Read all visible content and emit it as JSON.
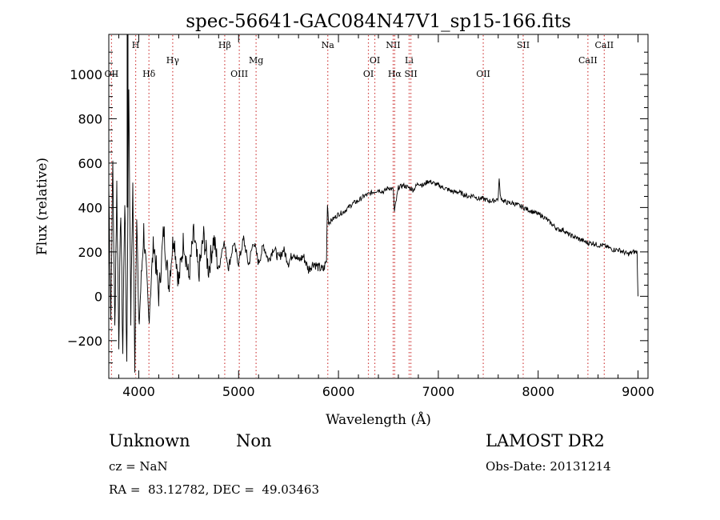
{
  "chart_data": {
    "type": "line",
    "title": "spec-56641-GAC084N47V1_sp15-166.fits",
    "xlabel": "Wavelength (Å)",
    "ylabel": "Flux (relative)",
    "xlim": [
      3700,
      9100
    ],
    "ylim": [
      -370,
      1180
    ],
    "xticks": [
      4000,
      5000,
      6000,
      7000,
      8000,
      9000
    ],
    "xtick_labels": [
      "4000",
      "5000",
      "6000",
      "7000",
      "8000",
      "9000"
    ],
    "yticks": [
      -200,
      0,
      200,
      400,
      600,
      800,
      1000
    ],
    "ytick_labels": [
      "−200",
      "0",
      "200",
      "400",
      "600",
      "800",
      "1000"
    ],
    "grid": false,
    "line_color": "#000000",
    "marker_color": "#d04040",
    "spike": {
      "x": 3888,
      "y_top": 1180,
      "y_bottom": 400
    },
    "series": [
      {
        "x": [
          3700,
          3720,
          3740,
          3760,
          3780,
          3800,
          3820,
          3840,
          3860,
          3880,
          3900,
          3920,
          3940,
          3960,
          3980,
          4000,
          4050,
          4100,
          4150,
          4200,
          4250,
          4300,
          4350,
          4400,
          4450,
          4500,
          4550,
          4600,
          4650,
          4700,
          4750,
          4800,
          4850,
          4900,
          4950,
          5000,
          5050,
          5100,
          5150,
          5200,
          5250,
          5300,
          5350,
          5400,
          5450,
          5500,
          5550,
          5600,
          5650,
          5700,
          5750,
          5800,
          5850,
          5880,
          5890,
          5900,
          5950,
          6000,
          6050,
          6100,
          6150,
          6200,
          6250,
          6300,
          6350,
          6400,
          6450,
          6500,
          6550,
          6560,
          6600,
          6650,
          6700,
          6750,
          6800,
          6850,
          6900,
          6950,
          7000,
          7050,
          7100,
          7150,
          7200,
          7250,
          7300,
          7350,
          7400,
          7450,
          7500,
          7550,
          7600,
          7610,
          7620,
          7650,
          7700,
          7750,
          7800,
          7850,
          7900,
          7950,
          8000,
          8050,
          8100,
          8150,
          8200,
          8250,
          8300,
          8350,
          8400,
          8450,
          8500,
          8550,
          8600,
          8650,
          8700,
          8750,
          8800,
          8850,
          8900,
          8950,
          8990,
          9000
        ],
        "y": [
          500,
          -100,
          600,
          -150,
          500,
          -200,
          400,
          -250,
          450,
          -300,
          950,
          -100,
          500,
          -300,
          400,
          -150,
          300,
          -100,
          250,
          0,
          300,
          50,
          280,
          60,
          260,
          80,
          280,
          100,
          270,
          120,
          260,
          120,
          250,
          130,
          240,
          150,
          260,
          140,
          250,
          150,
          230,
          160,
          220,
          170,
          210,
          150,
          200,
          160,
          180,
          120,
          150,
          130,
          120,
          160,
          430,
          330,
          350,
          370,
          380,
          400,
          420,
          430,
          450,
          460,
          470,
          480,
          470,
          490,
          480,
          380,
          490,
          500,
          490,
          480,
          510,
          500,
          520,
          510,
          500,
          490,
          480,
          470,
          470,
          460,
          450,
          455,
          440,
          440,
          430,
          430,
          440,
          540,
          450,
          430,
          420,
          420,
          410,
          400,
          390,
          380,
          370,
          360,
          340,
          320,
          300,
          300,
          280,
          270,
          260,
          250,
          240,
          240,
          230,
          230,
          220,
          210,
          210,
          200,
          190,
          200,
          200,
          0
        ]
      }
    ],
    "line_markers": [
      {
        "label": "OII",
        "x": 3727,
        "row": 2
      },
      {
        "label": "H",
        "x": 3969,
        "row": 0
      },
      {
        "label": "Hδ",
        "x": 4102,
        "row": 2
      },
      {
        "label": "Hγ",
        "x": 4340,
        "row": 1
      },
      {
        "label": "Hβ",
        "x": 4861,
        "row": 0
      },
      {
        "label": "OIII",
        "x": 5007,
        "row": 2
      },
      {
        "label": "Mg",
        "x": 5175,
        "row": 1
      },
      {
        "label": "Na",
        "x": 5893,
        "row": 0
      },
      {
        "label": "OI",
        "x": 6300,
        "row": 2
      },
      {
        "label": "OI",
        "x": 6364,
        "row": 1
      },
      {
        "label": "NII",
        "x": 6548,
        "row": 0
      },
      {
        "label": "Hα",
        "x": 6563,
        "row": 2
      },
      {
        "label": "Li",
        "x": 6708,
        "row": 1
      },
      {
        "label": "SII",
        "x": 6725,
        "row": 2
      },
      {
        "label": "OII",
        "x": 7450,
        "row": 2
      },
      {
        "label": "SII",
        "x": 7850,
        "row": 0
      },
      {
        "label": "CaII",
        "x": 8498,
        "row": 1
      },
      {
        "label": "CaII",
        "x": 8662,
        "row": 0
      }
    ]
  },
  "info": {
    "class_label": "Unknown",
    "subclass_label": "Non",
    "survey": "LAMOST DR2",
    "cz": "cz = NaN",
    "obs_date": "Obs-Date: 20131214",
    "coords": "RA =  83.12782, DEC =  49.03463"
  }
}
